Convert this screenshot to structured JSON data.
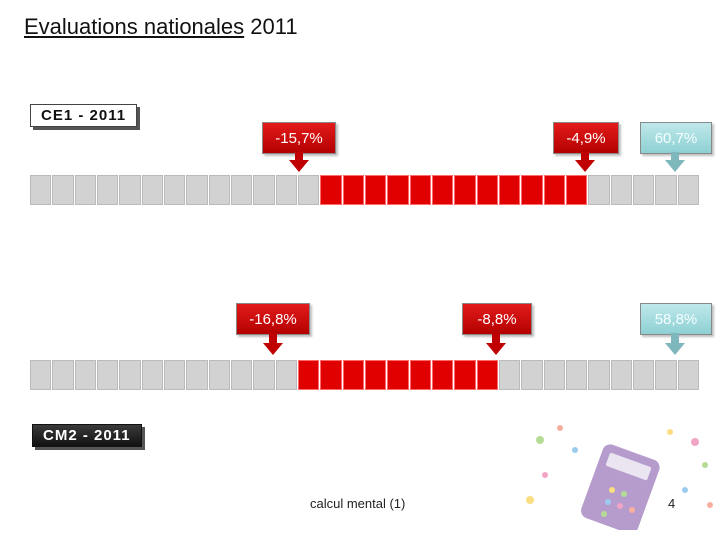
{
  "title": {
    "underlined": "Evaluations nationales",
    "rest": " 2011"
  },
  "tags": {
    "ce1": "CE1 - 2011",
    "cm2": "CM2 - 2011"
  },
  "ce1_row": {
    "total_cells": 30,
    "red_from": 13,
    "red_to": 25,
    "callouts": [
      "-15,7%",
      "-4,9%",
      "60,7%"
    ]
  },
  "cm2_row": {
    "total_cells": 30,
    "red_from": 12,
    "red_to": 21,
    "callouts": [
      "-16,8%",
      "-8,8%",
      "58,8%"
    ]
  },
  "colors": {
    "accent_red": "#e00000",
    "grey_cell": "#d2d2d2",
    "teal": "#8ed0d4"
  },
  "footer": "calcul mental (1)",
  "page_number": "4"
}
